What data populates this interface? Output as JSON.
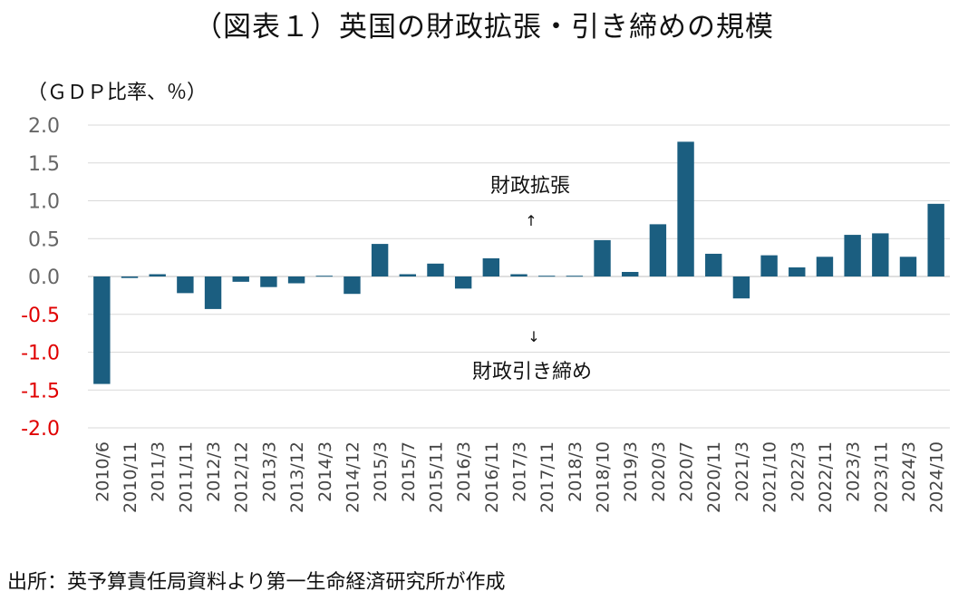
{
  "chart_data": {
    "type": "bar",
    "title": "（図表１）英国の財政拡張・引き締めの規模",
    "unit_label": "（ＧＤＰ比率、％）",
    "source": "出所：英予算責任局資料より第一生命経済研究所が作成",
    "ylim": [
      -2.0,
      2.0
    ],
    "yticks": [
      "2.0",
      "1.5",
      "1.0",
      "0.5",
      "0.0",
      "-0.5",
      "-1.0",
      "-1.5",
      "-2.0"
    ],
    "ytick_values": [
      2.0,
      1.5,
      1.0,
      0.5,
      0.0,
      -0.5,
      -1.0,
      -1.5,
      -2.0
    ],
    "grid": true,
    "categories": [
      "2010/6",
      "2010/11",
      "2011/3",
      "2011/11",
      "2012/3",
      "2012/12",
      "2013/3",
      "2013/12",
      "2014/3",
      "2014/12",
      "2015/3",
      "2015/7",
      "2015/11",
      "2016/3",
      "2016/11",
      "2017/3",
      "2017/11",
      "2018/3",
      "2018/10",
      "2019/3",
      "2020/3",
      "2020/7",
      "2020/11",
      "2021/3",
      "2021/10",
      "2022/3",
      "2022/11",
      "2023/3",
      "2023/11",
      "2024/3",
      "2024/10"
    ],
    "values": [
      -1.42,
      -0.02,
      0.03,
      -0.22,
      -0.43,
      -0.07,
      -0.14,
      -0.09,
      0.01,
      -0.23,
      0.43,
      0.03,
      0.17,
      -0.16,
      0.24,
      0.03,
      0.01,
      0.01,
      0.48,
      0.06,
      0.69,
      1.78,
      0.3,
      -0.29,
      0.28,
      0.12,
      0.26,
      0.55,
      0.57,
      0.26,
      0.96
    ],
    "annotations": {
      "expansion_label": "財政拡張",
      "expansion_arrow": "↑",
      "tightening_arrow": "↓",
      "tightening_label": "財政引き締め"
    },
    "colors": {
      "bar": "#1B5E80",
      "positive_tick": "#666666",
      "negative_tick": "#E00000",
      "grid": "#D9D9D9",
      "zero_line": "#BFBFBF"
    }
  }
}
